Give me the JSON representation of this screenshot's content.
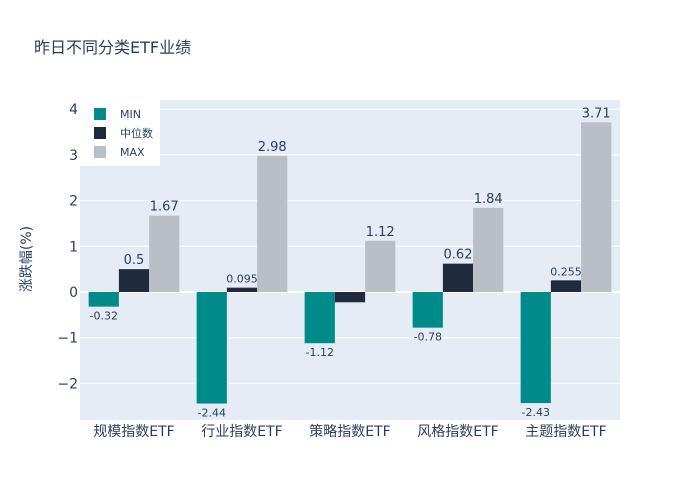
{
  "chart_data": {
    "type": "bar",
    "title": "昨日不同分类ETF业绩",
    "xlabel": "",
    "ylabel": "涨跌幅(%)",
    "categories": [
      "规模指数ETF",
      "行业指数ETF",
      "策略指数ETF",
      "风格指数ETF",
      "主题指数ETF"
    ],
    "series": [
      {
        "name": "MIN",
        "color": "#008b8b",
        "values": [
          -0.32,
          -2.44,
          -1.12,
          -0.78,
          -2.43
        ],
        "labels": [
          "-0.32",
          "-2.44",
          "-1.12",
          "-0.78",
          "-2.43"
        ]
      },
      {
        "name": "中位数",
        "color": "#1f2a3d",
        "values": [
          0.5,
          0.095,
          -0.225,
          0.62,
          0.255
        ],
        "labels": [
          "0.5",
          "0.095",
          "",
          "0.62",
          "0.255"
        ]
      },
      {
        "name": "MAX",
        "color": "#b8bfc7",
        "values": [
          1.67,
          2.98,
          1.12,
          1.84,
          3.71
        ],
        "labels": [
          "1.67",
          "2.98",
          "1.12",
          "1.84",
          "3.71"
        ]
      }
    ],
    "ylim": [
      -2.8,
      4.2
    ],
    "yticks": [
      -2,
      -1,
      0,
      1,
      2,
      3,
      4
    ],
    "ytick_labels": [
      "−2",
      "−1",
      "0",
      "1",
      "2",
      "3",
      "4"
    ],
    "grid": true,
    "legend_position": "top-left"
  }
}
